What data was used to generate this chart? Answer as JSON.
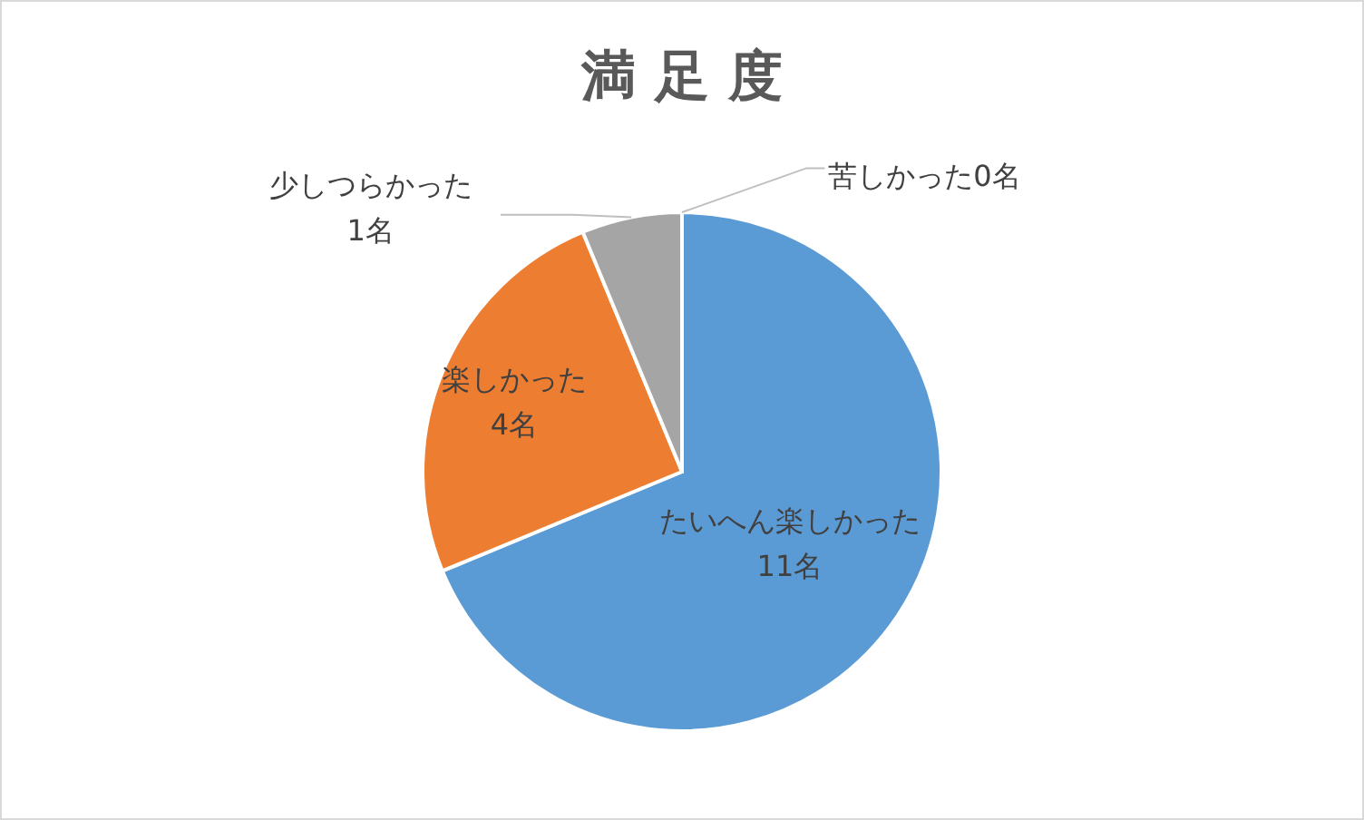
{
  "chart_data": {
    "type": "pie",
    "title": "満 足 度",
    "categories": [
      "たいへん楽しかった",
      "楽しかった",
      "少しつらかった",
      "苦しかった"
    ],
    "values": [
      11,
      4,
      1,
      0
    ],
    "value_labels": [
      "11名",
      "4名",
      "1名",
      "0名"
    ],
    "colors": [
      "#5b9bd5",
      "#ed7d31",
      "#a5a5a5",
      "#ffc000"
    ]
  }
}
